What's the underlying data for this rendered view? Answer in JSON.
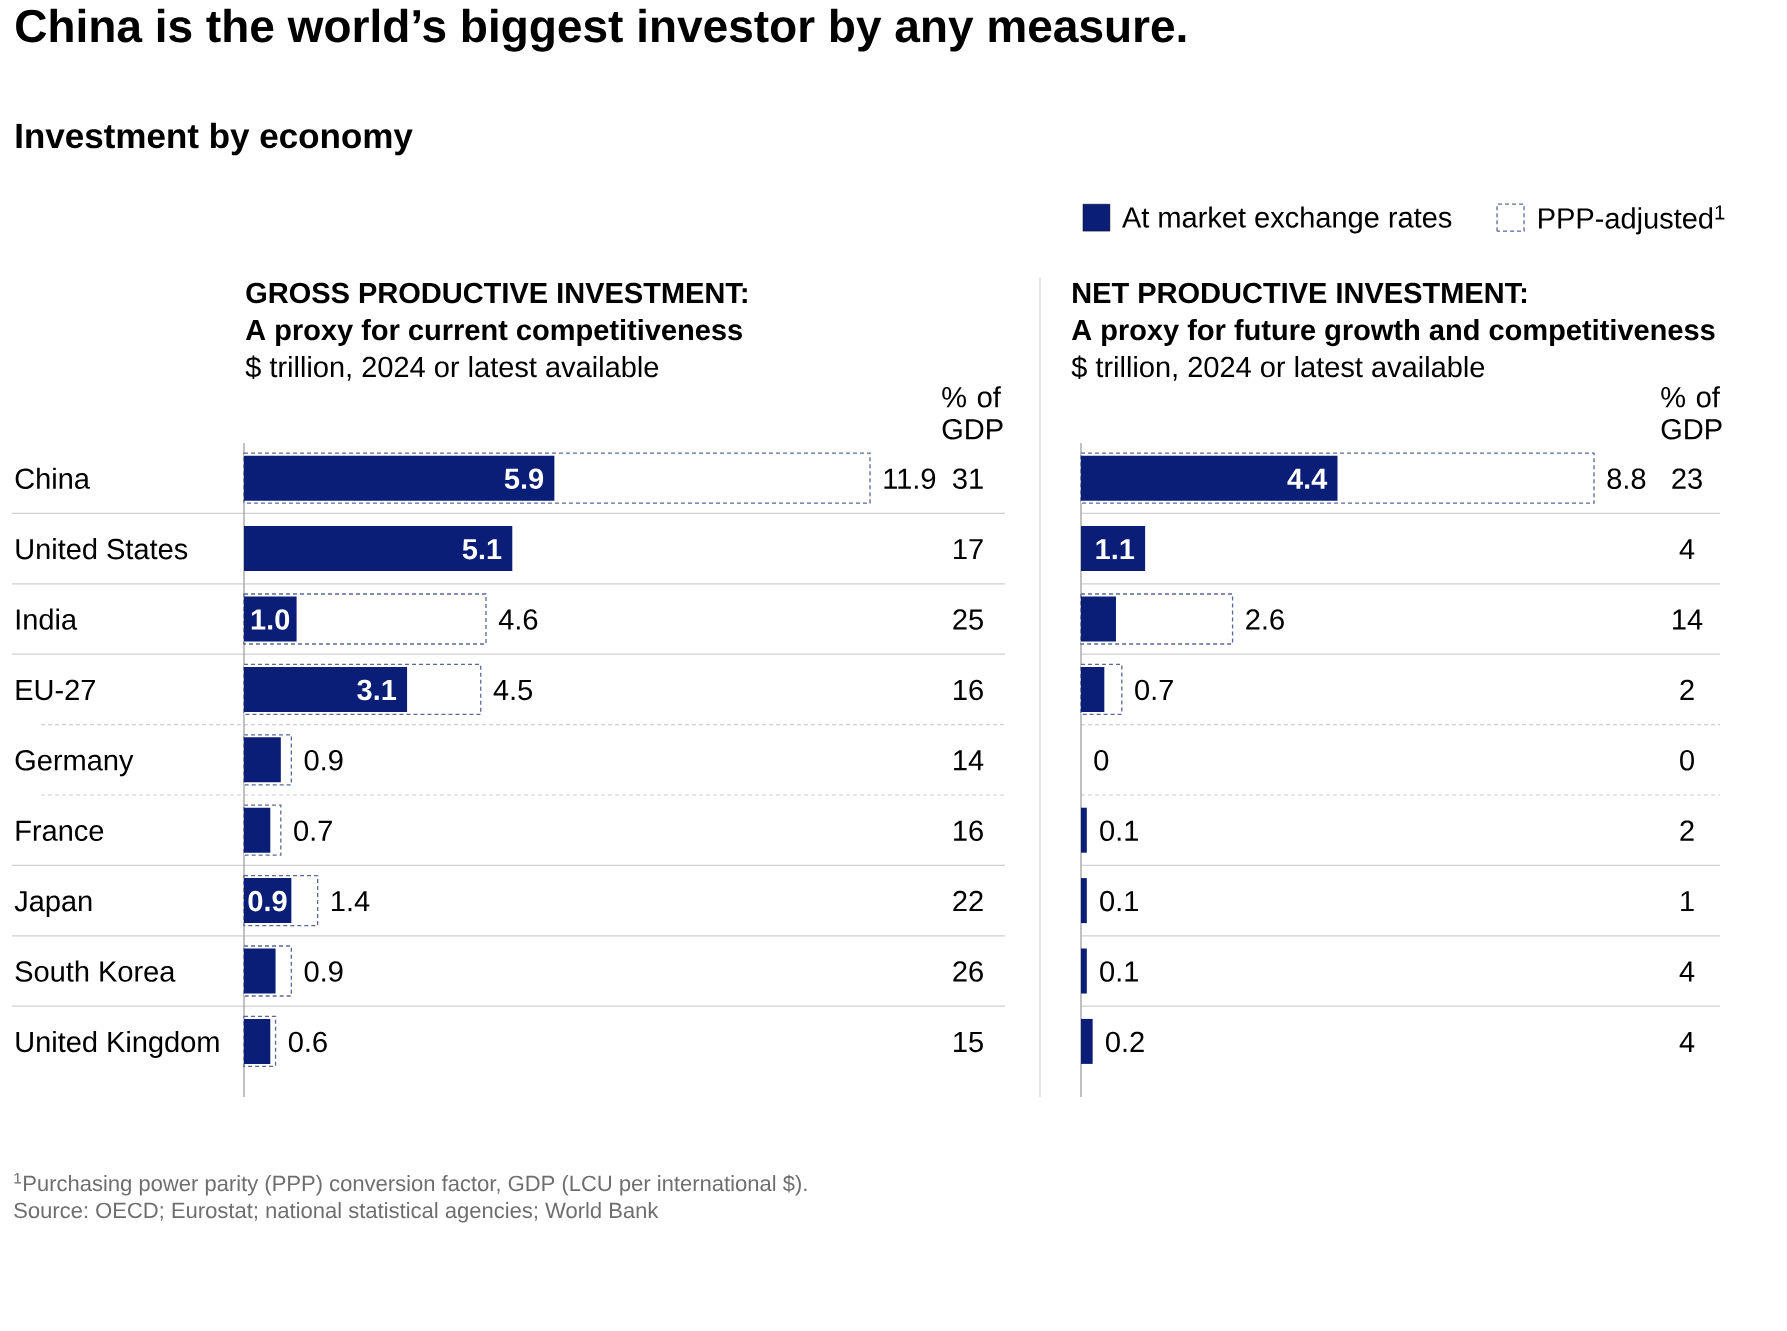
{
  "chart_data": [
    {
      "type": "bar",
      "orientation": "horizontal",
      "title": "GROSS PRODUCTIVE INVESTMENT:",
      "subtitle": "A proxy for current competitiveness",
      "xlabel": "$ trillion, 2024 or latest available",
      "annotations": [
        "China is the world’s biggest investor by any measure.",
        "Investment by economy",
        "$^{1}$Purchasing power parity (PPP) conversion factor, GDP (LCU per international $).",
        "Source: OECD; Eurostat; national statistical agencies; World Bank"
      ],
      "categories": [
        "China",
        "United States",
        "India",
        "EU-27",
        "Germany",
        "France",
        "Japan",
        "South Korea",
        "United Kingdom"
      ],
      "series": [
        {
          "color": "#0a1e78",
          "values": [
            5.9,
            5.1,
            1.0,
            3.1,
            0.7,
            0.5,
            0.9,
            0.6,
            0.5
          ],
          "value_labels": [
            "5.9",
            "5.1",
            "1.0",
            "3.1",
            null,
            null,
            "0.9",
            null,
            null
          ]
        },
        {
          "color": "#5b6899",
          "line_style": "dashed",
          "values": [
            11.9,
            null,
            4.6,
            4.5,
            0.9,
            0.7,
            1.4,
            0.9,
            0.6
          ],
          "value_labels": [
            "11.9",
            null,
            "4.6",
            "4.5",
            "0.9",
            "0.7",
            "1.4",
            "0.9",
            "0.6"
          ]
        }
      ],
      "tick_labels": "y"
    },
    {
      "type": "other",
      "title": "% of GDP",
      "categories": [
        null,
        null,
        null,
        null,
        null,
        null,
        null,
        null,
        null
      ],
      "values": [
        31,
        17,
        25,
        16,
        14,
        16,
        22,
        26,
        15
      ],
      "data_labels": true
    },
    {
      "type": "bar",
      "orientation": "horizontal",
      "title": "NET PRODUCTIVE INVESTMENT:",
      "subtitle": "A proxy for future growth and competitiveness",
      "xlabel": "$ trillion, 2024 or latest available",
      "categories": [
        null,
        null,
        null,
        null,
        null,
        null,
        null,
        null,
        null
      ],
      "series": [
        {
          "name": "At market exchange rates",
          "color": "#0a1e78",
          "values": [
            4.4,
            1.1,
            0.6,
            0.4,
            0,
            0.1,
            0.1,
            0.1,
            0.2
          ],
          "value_labels": [
            "4.4",
            "1.1",
            null,
            null,
            "0",
            "0.1",
            "0.1",
            "0.1",
            "0.2"
          ]
        },
        {
          "name": "PPP-adjusted$^{1}$",
          "color": "#5b6899",
          "line_style": "dashed",
          "values": [
            8.8,
            null,
            2.6,
            0.7,
            null,
            null,
            null,
            null,
            null
          ],
          "value_labels": [
            "8.8",
            null,
            "2.6",
            "0.7",
            null,
            null,
            null,
            null,
            null
          ]
        }
      ],
      "legend": "top right"
    },
    {
      "type": "other",
      "title": "% of GDP",
      "categories": [
        null,
        null,
        null,
        null,
        null,
        null,
        null,
        null,
        null
      ],
      "values": [
        23,
        4,
        14,
        2,
        0,
        2,
        1,
        4,
        4
      ],
      "data_labels": true
    }
  ]
}
